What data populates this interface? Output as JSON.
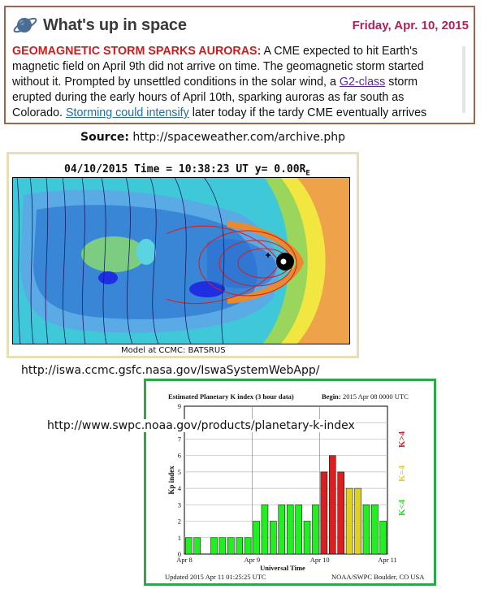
{
  "news": {
    "site_title": "What's up in space",
    "date": "Friday, Apr. 10, 2015",
    "headline": "GEOMAGNETIC STORM SPARKS AURORAS:",
    "body_1": " A CME expected to hit Earth's magnetic field on April 9th did not arrive on time. The geomagnetic storm started without it. Prompted by unsettled conditions in the solar wind, a ",
    "link_1": "G2-class",
    "body_2": " storm erupted during the early hours of April 10th, sparking auroras as far south as Colorado. ",
    "link_2": "Storming could intensify",
    "body_3": " later today if the tardy CME eventually arrives"
  },
  "source": {
    "label": "Source:",
    "url": " http://spaceweather.com/archive.php"
  },
  "simulation": {
    "title": "04/10/2015 Time = 10:38:23 UT y= 0.00R",
    "title_sub": "E",
    "caption": "Model at CCMC: BATSRUS",
    "url": "http://iswa.ccmc.gsfc.nasa.gov/IswaSystemWebApp/"
  },
  "kindex": {
    "url": "http://www.swpc.noaa.gov/products/planetary-k-index"
  },
  "chart_data": {
    "type": "bar",
    "title": "Estimated Planetary K index (3 hour data)",
    "begin_label": "Begin:",
    "begin_value": "2015 Apr 08 0000 UTC",
    "xlabel": "Universal Time",
    "ylabel": "Kp index",
    "ylim": [
      0,
      9
    ],
    "yticks": [
      "0",
      "1",
      "2",
      "3",
      "4",
      "5",
      "6",
      "7",
      "8",
      "9"
    ],
    "xtick_labels": [
      "Apr 8",
      "Apr 9",
      "Apr 10",
      "Apr 11"
    ],
    "footer_left": "Updated 2015 Apr 11 01:25:25 UTC",
    "footer_right": "NOAA/SWPC Boulder, CO USA",
    "legend": [
      {
        "label": "K>4",
        "color": "#d02020"
      },
      {
        "label": "K=4",
        "color": "#e0d020"
      },
      {
        "label": "K<4",
        "color": "#22dd22"
      }
    ],
    "values": [
      1,
      1,
      0,
      1,
      1,
      1,
      1,
      1,
      2,
      3,
      2,
      3,
      3,
      3,
      2,
      3,
      5,
      6,
      5,
      4,
      4,
      3,
      3,
      2
    ],
    "colors": {
      "low": "#22ee22",
      "mid": "#e0d020",
      "high": "#d82020"
    },
    "grid": true
  }
}
